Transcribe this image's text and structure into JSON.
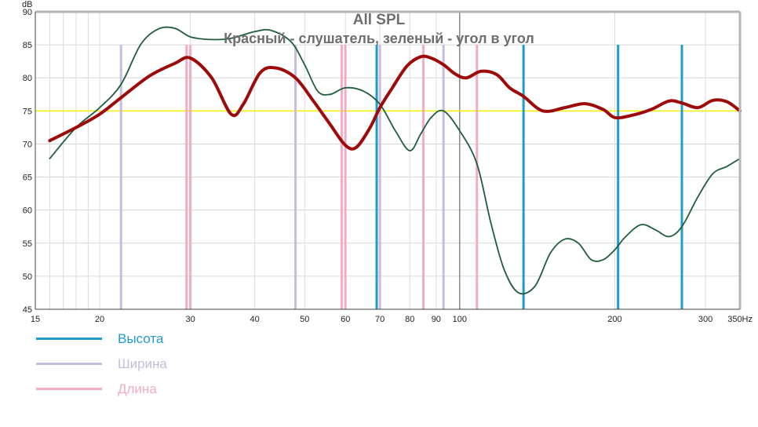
{
  "chart_data": {
    "type": "line",
    "title": "All SPL",
    "subtitle": "Красный - слушатель, зеленый - угол в угол",
    "ylabel": "dB",
    "xscale": "log",
    "xlim": [
      15,
      350
    ],
    "ylim": [
      45,
      90
    ],
    "yticks": [
      45,
      50,
      55,
      60,
      65,
      70,
      75,
      80,
      85,
      90
    ],
    "xticks": [
      {
        "value": 15,
        "label": "15"
      },
      {
        "value": 20,
        "label": "20"
      },
      {
        "value": 30,
        "label": "30"
      },
      {
        "value": 40,
        "label": "40"
      },
      {
        "value": 50,
        "label": "50"
      },
      {
        "value": 60,
        "label": "60"
      },
      {
        "value": 70,
        "label": "70"
      },
      {
        "value": 80,
        "label": "80"
      },
      {
        "value": 90,
        "label": "90"
      },
      {
        "value": 100,
        "label": "100"
      },
      {
        "value": 200,
        "label": "200"
      },
      {
        "value": 300,
        "label": "300"
      },
      {
        "value": 350,
        "label": "350Hz"
      }
    ],
    "grid": true,
    "reference_line": {
      "y": 75,
      "color": "#f2f200"
    },
    "series": [
      {
        "color": "#9e0a0a",
        "x": [
          16,
          18,
          20,
          22,
          25,
          28,
          30,
          33,
          36,
          38,
          41,
          44,
          48,
          52,
          56,
          60,
          63,
          67,
          70,
          74,
          79,
          84,
          88,
          93,
          98,
          103,
          110,
          118,
          125,
          133,
          145,
          160,
          175,
          190,
          200,
          215,
          235,
          255,
          270,
          290,
          310,
          330,
          350
        ],
        "y": [
          70.5,
          72.5,
          74.5,
          77.0,
          80.3,
          82.2,
          83.0,
          80.0,
          74.5,
          76.0,
          80.8,
          81.5,
          80.0,
          76.5,
          73.0,
          69.8,
          69.5,
          72.5,
          75.5,
          78.5,
          81.8,
          83.2,
          83.0,
          82.0,
          80.6,
          80.0,
          81.0,
          80.5,
          78.5,
          77.2,
          75.0,
          75.5,
          76.1,
          75.2,
          74.0,
          74.3,
          75.2,
          76.5,
          76.2,
          75.5,
          76.6,
          76.4,
          75.0
        ]
      },
      {
        "color": "#1e5e3c",
        "x": [
          16,
          18,
          20,
          22,
          24,
          26,
          28,
          30,
          33,
          36,
          40,
          43,
          47,
          50,
          53,
          56,
          60,
          65,
          70,
          75,
          80,
          84,
          88,
          93,
          100,
          108,
          115,
          122,
          130,
          140,
          150,
          160,
          170,
          180,
          190,
          200,
          210,
          225,
          240,
          255,
          270,
          290,
          310,
          330,
          350
        ],
        "y": [
          67.8,
          72.5,
          75.5,
          79.0,
          85.0,
          87.4,
          87.5,
          86.2,
          85.8,
          86.0,
          87.0,
          87.2,
          85.5,
          82.0,
          78.0,
          77.5,
          78.5,
          78.0,
          76.0,
          72.0,
          69.0,
          71.5,
          74.0,
          75.0,
          72.0,
          67.0,
          58.0,
          51.0,
          47.5,
          48.5,
          53.5,
          55.6,
          55.0,
          52.5,
          52.5,
          54.0,
          56.0,
          57.8,
          57.0,
          56.0,
          57.5,
          62.0,
          65.5,
          66.6,
          67.8
        ]
      }
    ],
    "vertical_markers": [
      {
        "group": "Высота",
        "color": "#1f9bcc",
        "x": [
          69,
          133,
          203,
          270
        ]
      },
      {
        "group": "Ширина",
        "color": "#c6bcdd",
        "x": [
          22,
          48,
          70,
          93
        ]
      },
      {
        "group": "Длина",
        "color": "#f2acc3",
        "x": [
          29.5,
          30,
          59,
          60,
          85,
          108
        ]
      }
    ],
    "legend": [
      {
        "label": "Высота",
        "color": "#1f9bcc"
      },
      {
        "label": "Ширина",
        "color": "#c6bcdd"
      },
      {
        "label": "Длина",
        "color": "#f2acc3"
      }
    ]
  }
}
